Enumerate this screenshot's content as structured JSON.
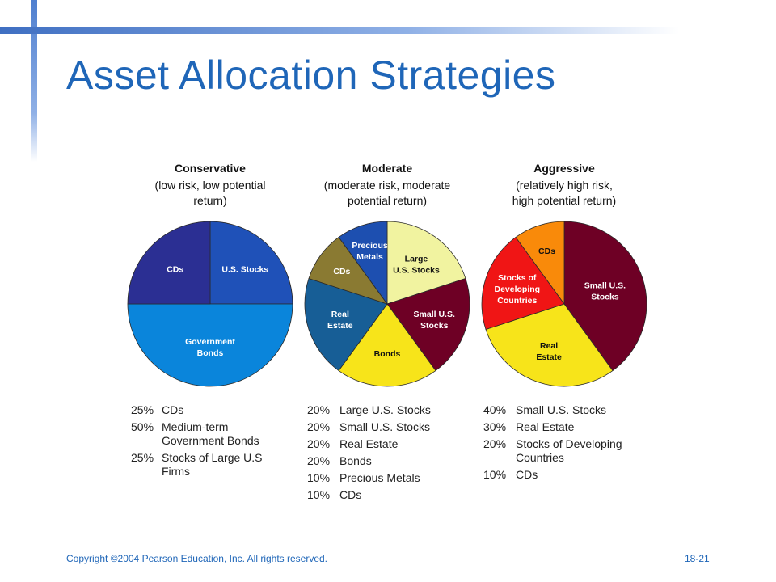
{
  "slide": {
    "title": "Asset Allocation Strategies",
    "copyright": "Copyright ©2004 Pearson Education, Inc. All rights reserved.",
    "page_number": "18-21"
  },
  "chart_data": [
    {
      "type": "pie",
      "title": "Conservative",
      "subtitle": [
        "(low risk, low potential",
        "return)"
      ],
      "slices": [
        {
          "label": [
            "U.S. Stocks"
          ],
          "value": 25,
          "color": "#1f51b8"
        },
        {
          "label": [
            "Government",
            "Bonds"
          ],
          "value": 50,
          "color": "#0a85db"
        },
        {
          "label": [
            "CDs"
          ],
          "value": 25,
          "color": "#2b2f93"
        }
      ],
      "legend": [
        {
          "pct": "25%",
          "text": [
            "CDs"
          ]
        },
        {
          "pct": "50%",
          "text": [
            "Medium-term",
            "Government Bonds"
          ]
        },
        {
          "pct": "25%",
          "text": [
            "Stocks of Large U.S",
            "Firms"
          ]
        }
      ]
    },
    {
      "type": "pie",
      "title": "Moderate",
      "subtitle": [
        "(moderate risk, moderate",
        "potential return)"
      ],
      "slices": [
        {
          "label": [
            "Large",
            "U.S. Stocks"
          ],
          "value": 20,
          "color": "#f1f3a0"
        },
        {
          "label": [
            "Small U.S.",
            "Stocks"
          ],
          "value": 20,
          "color": "#6e0025"
        },
        {
          "label": [
            "Bonds"
          ],
          "value": 20,
          "color": "#f7e41a"
        },
        {
          "label": [
            "Real",
            "Estate"
          ],
          "value": 20,
          "color": "#175e96"
        },
        {
          "label": [
            "CDs"
          ],
          "value": 10,
          "color": "#8a7a32"
        },
        {
          "label": [
            "Precious",
            "Metals"
          ],
          "value": 10,
          "color": "#1d4fb0"
        }
      ],
      "legend": [
        {
          "pct": "20%",
          "text": [
            "Large U.S. Stocks"
          ]
        },
        {
          "pct": "20%",
          "text": [
            "Small U.S. Stocks"
          ]
        },
        {
          "pct": "20%",
          "text": [
            "Real Estate"
          ]
        },
        {
          "pct": "20%",
          "text": [
            "Bonds"
          ]
        },
        {
          "pct": "10%",
          "text": [
            "Precious Metals"
          ]
        },
        {
          "pct": "10%",
          "text": [
            "CDs"
          ]
        }
      ]
    },
    {
      "type": "pie",
      "title": "Aggressive",
      "subtitle": [
        "(relatively high risk,",
        "high potential return)"
      ],
      "slices": [
        {
          "label": [
            "Small U.S.",
            "Stocks"
          ],
          "value": 40,
          "color": "#6e0025"
        },
        {
          "label": [
            "Real",
            "Estate"
          ],
          "value": 30,
          "color": "#f7e41a"
        },
        {
          "label": [
            "Stocks of",
            "Developing",
            "Countries"
          ],
          "value": 20,
          "color": "#f01515"
        },
        {
          "label": [
            "CDs"
          ],
          "value": 10,
          "color": "#f98a0a"
        }
      ],
      "legend": [
        {
          "pct": "40%",
          "text": [
            "Small U.S. Stocks"
          ]
        },
        {
          "pct": "30%",
          "text": [
            "Real Estate"
          ]
        },
        {
          "pct": "20%",
          "text": [
            "Stocks of Developing",
            "Countries"
          ]
        },
        {
          "pct": "10%",
          "text": [
            "CDs"
          ]
        }
      ]
    }
  ]
}
